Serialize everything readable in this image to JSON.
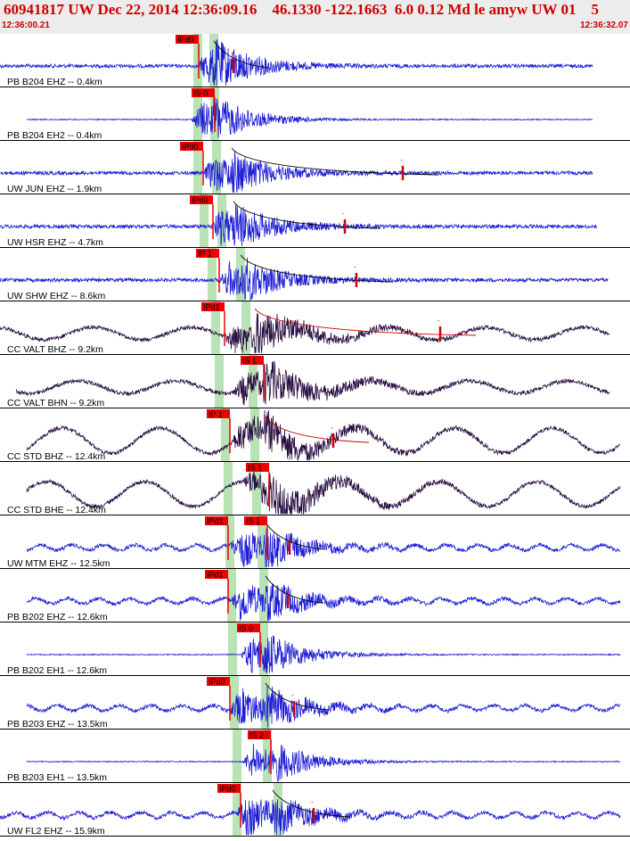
{
  "header": {
    "title": "60941817 UW Dec 22, 2014 12:36:09.16    46.1330 -122.1663  6.0 0.12 Md le amyw UW 01    5",
    "time_start": "12:36:00.21",
    "time_end": "12:36:32.07"
  },
  "colors": {
    "short_period": "#1f1fd6",
    "broadband": "#2a1042",
    "pick_box": "#ee0000",
    "window": "#b9e2b5",
    "coda": "#cc0000"
  },
  "traces": [
    {
      "label": "PB B204 EHZ -- 0.4km",
      "kind": "sp",
      "picks": [
        {
          "text": "IPd0"
        }
      ]
    },
    {
      "label": "PB B204 EH2 -- 0.4km",
      "kind": "sp",
      "picks": [
        {
          "text": "IS 0"
        }
      ]
    },
    {
      "label": "UW JUN EHZ -- 1.9km",
      "kind": "sp",
      "picks": [
        {
          "text": "IPd0"
        }
      ]
    },
    {
      "label": "UW HSR EHZ -- 4.7km",
      "kind": "sp",
      "picks": [
        {
          "text": "IPd0"
        }
      ]
    },
    {
      "label": "UW SHW EHZ -- 8.6km",
      "kind": "sp",
      "picks": [
        {
          "text": "IP 1"
        }
      ]
    },
    {
      "label": "CC VALT BHZ -- 9.2km",
      "kind": "bb",
      "picks": [
        {
          "text": "IPd1"
        }
      ]
    },
    {
      "label": "CC VALT BHN -- 9.2km",
      "kind": "bb",
      "picks": [
        {
          "text": "IS 1"
        }
      ]
    },
    {
      "label": "CC STD BHZ -- 12.4km",
      "kind": "bb",
      "picks": [
        {
          "text": "IP 1"
        }
      ]
    },
    {
      "label": "CC STD BHE -- 12.4km",
      "kind": "bb",
      "picks": [
        {
          "text": "IS 1"
        }
      ]
    },
    {
      "label": "UW MTM EHZ -- 12.5km",
      "kind": "sp",
      "picks": [
        {
          "text": "IPd1"
        },
        {
          "text": "IS 1"
        }
      ]
    },
    {
      "label": "PB B202 EHZ -- 12.6km",
      "kind": "sp",
      "picks": [
        {
          "text": "IPd1"
        }
      ]
    },
    {
      "label": "PB B202 EH1 -- 12.6km",
      "kind": "sp",
      "picks": [
        {
          "text": "IS 0"
        }
      ]
    },
    {
      "label": "PB B203 EHZ -- 13.5km",
      "kind": "sp",
      "picks": [
        {
          "text": "IPd0"
        }
      ]
    },
    {
      "label": "PB B203 EH1 -- 13.5km",
      "kind": "sp",
      "picks": [
        {
          "text": "IS 2"
        }
      ]
    },
    {
      "label": "UW FL2 EHZ -- 15.9km",
      "kind": "sp",
      "picks": [
        {
          "text": "IPd0"
        }
      ]
    }
  ]
}
